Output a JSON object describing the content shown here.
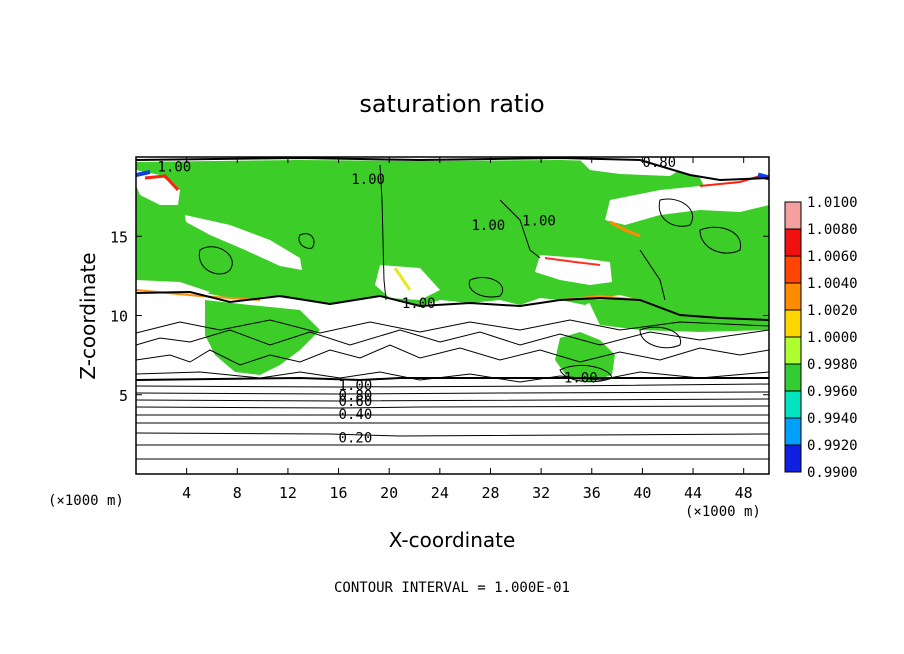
{
  "chart_data": {
    "type": "heatmap",
    "title": "saturation ratio",
    "xlabel": "X-coordinate",
    "ylabel": "Z-coordinate",
    "x_unit": "(×1000 m)",
    "y_unit": "(×1000 m)",
    "xlim": [
      0,
      50
    ],
    "ylim": [
      0,
      20
    ],
    "x_ticks": [
      4,
      8,
      12,
      16,
      20,
      24,
      28,
      32,
      36,
      40,
      44,
      48
    ],
    "y_ticks": [
      5,
      10,
      15
    ],
    "colorbar": {
      "range": [
        0.99,
        1.01
      ],
      "levels": [
        "1.0100",
        "1.0080",
        "1.0060",
        "1.0040",
        "1.0020",
        "1.0000",
        "0.9980",
        "0.9960",
        "0.9940",
        "0.9920",
        "0.9900"
      ],
      "colors": [
        "#f4a0a0",
        "#f01010",
        "#ff4500",
        "#ff8c00",
        "#ffd700",
        "#adff2f",
        "#32cd32",
        "#00e5c0",
        "#00a0ff",
        "#1020e0",
        "#5000a0"
      ]
    },
    "contour_labels": [
      {
        "text": "1.00",
        "x": 1.7,
        "y": 19.4
      },
      {
        "text": "0.80",
        "x": 40.0,
        "y": 19.7
      },
      {
        "text": "1.00",
        "x": 17.0,
        "y": 18.6
      },
      {
        "text": "1.00",
        "x": 26.5,
        "y": 15.7
      },
      {
        "text": "1.00",
        "x": 30.5,
        "y": 16.0
      },
      {
        "text": "1.00",
        "x": 21.0,
        "y": 10.8
      },
      {
        "text": "1.00",
        "x": 33.8,
        "y": 6.1
      },
      {
        "text": "1.00",
        "x": 16.0,
        "y": 5.6
      },
      {
        "text": "0.80",
        "x": 16.0,
        "y": 5.0
      },
      {
        "text": "0.60",
        "x": 16.0,
        "y": 4.6
      },
      {
        "text": "0.40",
        "x": 16.0,
        "y": 3.8
      },
      {
        "text": "0.20",
        "x": 16.0,
        "y": 2.3
      }
    ],
    "contour_interval_label": "CONTOUR INTERVAL = 1.000E-01"
  }
}
